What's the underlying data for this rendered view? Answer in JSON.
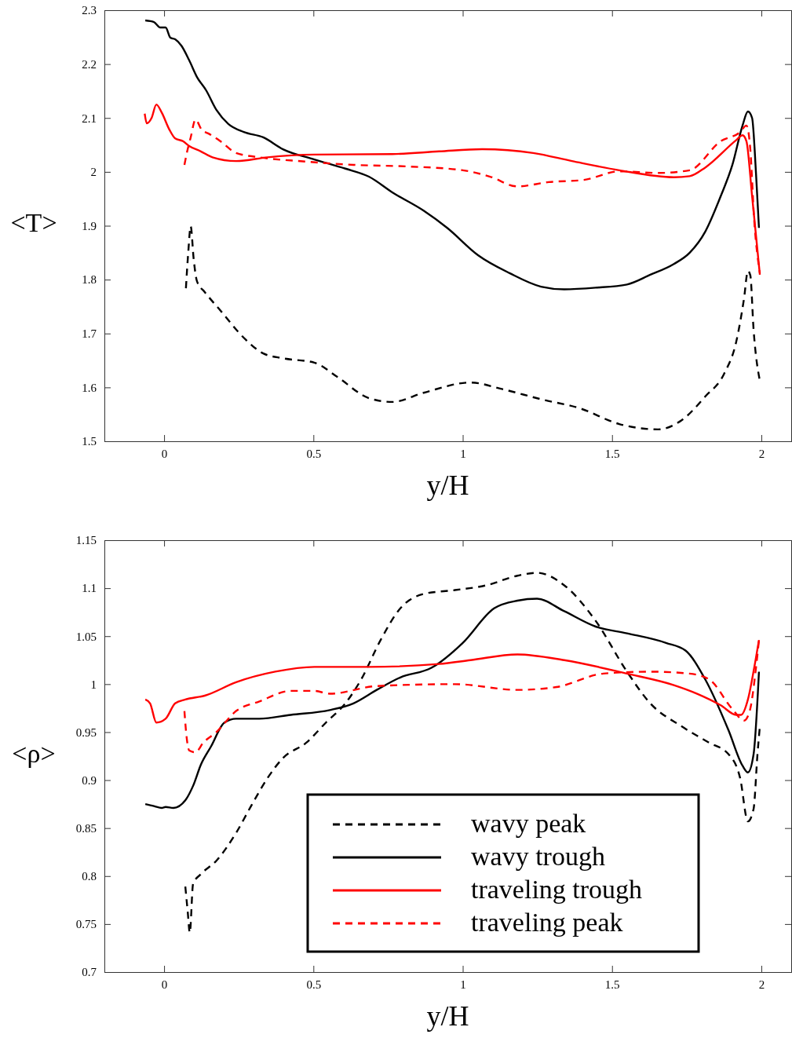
{
  "chart_data": [
    {
      "type": "line",
      "xlabel": "y/H",
      "ylabel": "<T>",
      "xlim": [
        -0.2,
        2.1
      ],
      "ylim": [
        1.5,
        2.3
      ],
      "xticks": [
        0,
        0.5,
        1,
        1.5,
        2
      ],
      "yticks": [
        1.5,
        1.6,
        1.7,
        1.8,
        1.9,
        2,
        2.1,
        2.2,
        2.3
      ],
      "grid": false,
      "legend": false,
      "series": [
        {
          "color": "#000000",
          "line_style": "dashed",
          "x": [
            0.073,
            0.081,
            0.089,
            0.099,
            0.11,
            0.136,
            0.188,
            0.267,
            0.332,
            0.398,
            0.503,
            0.581,
            0.686,
            0.764,
            0.869,
            1.026,
            1.131,
            1.262,
            1.393,
            1.524,
            1.654,
            1.733,
            1.812,
            1.877,
            1.916,
            1.942,
            1.955,
            1.963,
            1.974,
            1.995
          ],
          "values": [
            1.784,
            1.852,
            1.899,
            1.838,
            1.797,
            1.777,
            1.743,
            1.692,
            1.663,
            1.654,
            1.646,
            1.619,
            1.58,
            1.573,
            1.59,
            1.609,
            1.597,
            1.578,
            1.561,
            1.532,
            1.522,
            1.539,
            1.583,
            1.627,
            1.685,
            1.765,
            1.816,
            1.808,
            1.707,
            1.612
          ]
        },
        {
          "color": "#000000",
          "line_style": "solid",
          "x": [
            -0.063,
            -0.034,
            -0.013,
            0.005,
            0.021,
            0.037,
            0.058,
            0.084,
            0.11,
            0.141,
            0.175,
            0.215,
            0.267,
            0.332,
            0.398,
            0.503,
            0.607,
            0.686,
            0.764,
            0.869,
            0.948,
            1.052,
            1.157,
            1.262,
            1.34,
            1.445,
            1.55,
            1.628,
            1.707,
            1.76,
            1.812,
            1.864,
            1.903,
            1.937,
            1.955,
            1.969,
            1.982,
            1.992
          ],
          "values": [
            2.281,
            2.278,
            2.268,
            2.268,
            2.249,
            2.246,
            2.234,
            2.207,
            2.176,
            2.151,
            2.115,
            2.089,
            2.074,
            2.064,
            2.042,
            2.023,
            2.006,
            1.991,
            1.962,
            1.928,
            1.896,
            1.845,
            1.812,
            1.787,
            1.782,
            1.785,
            1.791,
            1.809,
            1.829,
            1.85,
            1.889,
            1.955,
            2.013,
            2.086,
            2.112,
            2.1,
            1.998,
            1.896
          ]
        },
        {
          "color": "#ff0000",
          "line_style": "solid",
          "x": [
            -0.065,
            -0.058,
            -0.042,
            -0.026,
            -0.008,
            0.018,
            0.037,
            0.063,
            0.084,
            0.123,
            0.162,
            0.241,
            0.346,
            0.503,
            0.764,
            0.921,
            1.065,
            1.236,
            1.366,
            1.524,
            1.707,
            1.76,
            1.812,
            1.916,
            1.937,
            1.95,
            1.969,
            1.995
          ],
          "values": [
            2.108,
            2.09,
            2.1,
            2.125,
            2.11,
            2.078,
            2.062,
            2.057,
            2.048,
            2.038,
            2.027,
            2.02,
            2.027,
            2.032,
            2.033,
            2.038,
            2.042,
            2.035,
            2.02,
            2.003,
            1.99,
            1.992,
            2.008,
            2.059,
            2.068,
            2.057,
            1.955,
            1.809
          ]
        },
        {
          "color": "#ff0000",
          "line_style": "dashed",
          "x": [
            0.068,
            0.076,
            0.089,
            0.105,
            0.126,
            0.149,
            0.188,
            0.241,
            0.319,
            0.476,
            0.634,
            0.817,
            1.0,
            1.092,
            1.183,
            1.288,
            1.406,
            1.524,
            1.654,
            1.76,
            1.864,
            1.929,
            1.95,
            1.963,
            1.976,
            1.995
          ],
          "values": [
            2.013,
            2.035,
            2.064,
            2.097,
            2.078,
            2.071,
            2.057,
            2.035,
            2.027,
            2.019,
            2.013,
            2.01,
            2.003,
            1.991,
            1.973,
            1.981,
            1.985,
            2.001,
            1.998,
            2.003,
            2.057,
            2.074,
            2.086,
            2.042,
            1.911,
            1.812
          ]
        }
      ]
    },
    {
      "type": "line",
      "xlabel": "y/H",
      "ylabel": "<ρ>",
      "xlim": [
        -0.2,
        2.1
      ],
      "ylim": [
        0.7,
        1.15
      ],
      "xticks": [
        0,
        0.5,
        1,
        1.5,
        2
      ],
      "yticks": [
        0.7,
        0.75,
        0.8,
        0.85,
        0.9,
        0.95,
        1,
        1.05,
        1.1,
        1.15
      ],
      "grid": false,
      "legend": "bottom right",
      "series": [
        {
          "name": "wavy peak",
          "color": "#000000",
          "line_style": "dashed",
          "x": [
            0.071,
            0.079,
            0.086,
            0.097,
            0.123,
            0.175,
            0.241,
            0.293,
            0.346,
            0.398,
            0.476,
            0.542,
            0.607,
            0.66,
            0.725,
            0.791,
            0.869,
            0.974,
            1.079,
            1.183,
            1.249,
            1.34,
            1.445,
            1.55,
            1.628,
            1.733,
            1.825,
            1.89,
            1.929,
            1.955,
            1.974,
            1.987,
            1.995
          ],
          "values": [
            0.789,
            0.763,
            0.741,
            0.792,
            0.802,
            0.816,
            0.845,
            0.874,
            0.902,
            0.923,
            0.939,
            0.96,
            0.98,
            1.005,
            1.046,
            1.079,
            1.094,
            1.098,
            1.103,
            1.113,
            1.116,
            1.103,
            1.066,
            1.013,
            0.98,
            0.956,
            0.939,
            0.927,
            0.902,
            0.857,
            0.87,
            0.927,
            0.956
          ]
        },
        {
          "name": "wavy trough",
          "color": "#000000",
          "line_style": "solid",
          "x": [
            -0.063,
            -0.034,
            -0.008,
            0.005,
            0.031,
            0.071,
            0.097,
            0.123,
            0.157,
            0.202,
            0.241,
            0.319,
            0.424,
            0.555,
            0.634,
            0.712,
            0.791,
            0.895,
            1.0,
            1.105,
            1.183,
            1.249,
            1.34,
            1.445,
            1.55,
            1.681,
            1.746,
            1.812,
            1.89,
            1.937,
            1.955,
            1.974,
            1.992
          ],
          "values": [
            0.875,
            0.873,
            0.871,
            0.872,
            0.871,
            0.879,
            0.894,
            0.916,
            0.935,
            0.96,
            0.964,
            0.964,
            0.968,
            0.973,
            0.98,
            0.994,
            1.007,
            1.017,
            1.043,
            1.079,
            1.087,
            1.089,
            1.076,
            1.06,
            1.053,
            1.043,
            1.035,
            1.005,
            0.952,
            0.915,
            0.908,
            0.927,
            1.013
          ]
        },
        {
          "name": "traveling trough",
          "color": "#ff0000",
          "line_style": "solid",
          "x": [
            -0.063,
            -0.047,
            -0.026,
            0.005,
            0.037,
            0.071,
            0.136,
            0.241,
            0.372,
            0.503,
            0.686,
            0.921,
            1.026,
            1.183,
            1.34,
            1.55,
            1.707,
            1.785,
            1.864,
            1.916,
            1.932,
            1.955,
            1.976,
            1.992
          ],
          "values": [
            0.984,
            0.98,
            0.96,
            0.964,
            0.98,
            0.984,
            0.988,
            1.002,
            1.013,
            1.018,
            1.018,
            1.021,
            1.025,
            1.031,
            1.025,
            1.011,
            0.999,
            0.99,
            0.978,
            0.968,
            0.968,
            0.984,
            1.017,
            1.046
          ]
        },
        {
          "name": "traveling peak",
          "color": "#ff0000",
          "line_style": "dashed",
          "x": [
            0.068,
            0.073,
            0.084,
            0.105,
            0.131,
            0.175,
            0.241,
            0.319,
            0.424,
            0.503,
            0.555,
            0.712,
            0.974,
            1.183,
            1.314,
            1.471,
            1.628,
            1.759,
            1.825,
            1.903,
            1.942,
            1.961,
            1.982,
            1.992
          ],
          "values": [
            0.972,
            0.952,
            0.931,
            0.929,
            0.939,
            0.95,
            0.972,
            0.982,
            0.993,
            0.993,
            0.99,
            0.998,
            1.0,
            0.994,
            0.997,
            1.011,
            1.013,
            1.011,
            1.005,
            0.974,
            0.962,
            0.972,
            1.017,
            1.046
          ]
        }
      ]
    }
  ]
}
